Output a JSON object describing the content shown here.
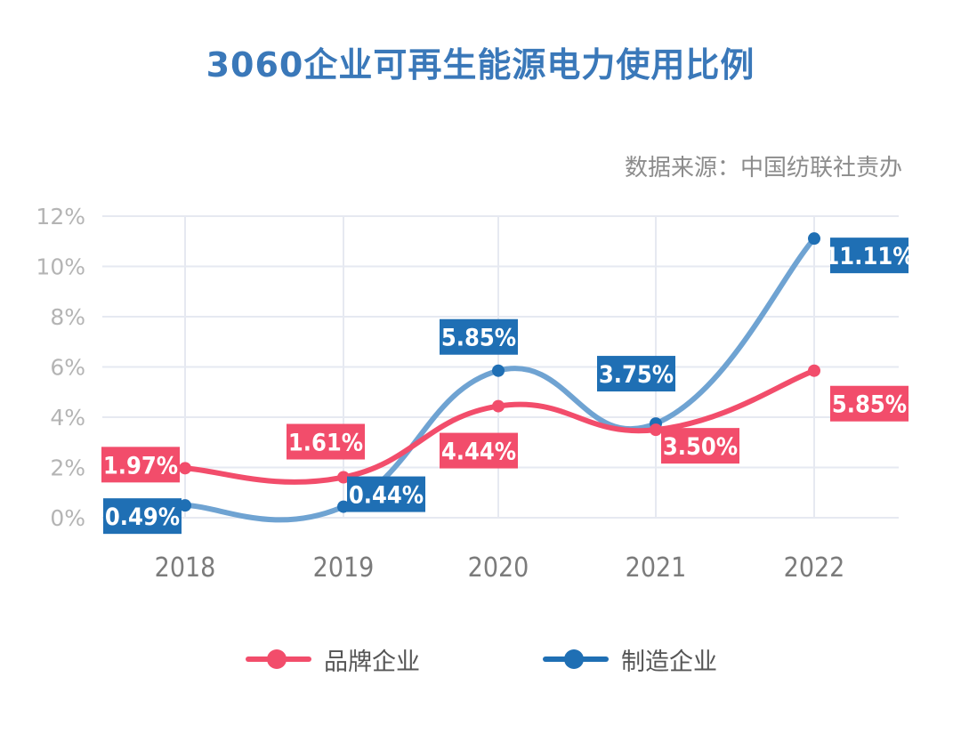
{
  "title": "3060企业可再生能源电力使用比例",
  "source": "数据来源：中国纺联社责办",
  "chart_data": {
    "type": "line",
    "title": "3060企业可再生能源电力使用比例",
    "categories": [
      "2018",
      "2019",
      "2020",
      "2021",
      "2022"
    ],
    "ylim": [
      0,
      12
    ],
    "yticks": [
      0,
      2,
      4,
      6,
      8,
      10,
      12
    ],
    "ytick_labels": [
      "0%",
      "2%",
      "4%",
      "6%",
      "8%",
      "10%",
      "12%"
    ],
    "series": [
      {
        "name": "品牌企业",
        "color": "#f24d6b",
        "values": [
          1.97,
          1.61,
          4.44,
          3.5,
          5.85
        ],
        "labels": [
          "1.97%",
          "1.61%",
          "4.44%",
          "3.50%",
          "5.85%"
        ]
      },
      {
        "name": "制造企业",
        "color": "#1f6fb4",
        "line_color": "#6fa3d2",
        "values": [
          0.49,
          0.44,
          5.85,
          3.75,
          11.11
        ],
        "labels": [
          "0.49%",
          "0.44%",
          "5.85%",
          "3.75%",
          "11.11%"
        ]
      }
    ],
    "grid": true,
    "legend": "bottom"
  }
}
